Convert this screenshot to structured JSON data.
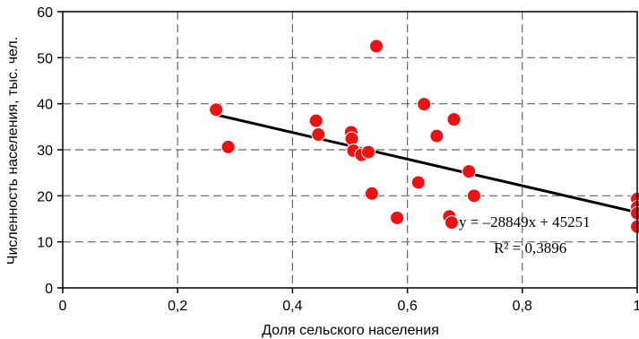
{
  "chart_data": {
    "type": "scatter",
    "xlabel": "Доля сельского населения",
    "ylabel": "Численность населения, тыс. чел.",
    "xlim": [
      0,
      1
    ],
    "ylim": [
      0,
      60
    ],
    "x_ticks": [
      "0",
      "0,2",
      "0,4",
      "0,6",
      "0,8",
      "1"
    ],
    "y_ticks": [
      "0",
      "10",
      "20",
      "30",
      "40",
      "50",
      "60"
    ],
    "grid": true,
    "grid_style": "dashed",
    "point_color": "#ee1111",
    "line_color": "#000000",
    "points": [
      {
        "x": 0.267,
        "y": 38.7
      },
      {
        "x": 0.288,
        "y": 30.6
      },
      {
        "x": 0.441,
        "y": 36.3
      },
      {
        "x": 0.445,
        "y": 33.3
      },
      {
        "x": 0.502,
        "y": 33.8
      },
      {
        "x": 0.503,
        "y": 32.4
      },
      {
        "x": 0.506,
        "y": 29.8
      },
      {
        "x": 0.52,
        "y": 28.9
      },
      {
        "x": 0.532,
        "y": 29.5
      },
      {
        "x": 0.538,
        "y": 20.5
      },
      {
        "x": 0.546,
        "y": 52.5
      },
      {
        "x": 0.582,
        "y": 15.2
      },
      {
        "x": 0.619,
        "y": 22.9
      },
      {
        "x": 0.629,
        "y": 39.9
      },
      {
        "x": 0.651,
        "y": 33.0
      },
      {
        "x": 0.673,
        "y": 15.5
      },
      {
        "x": 0.677,
        "y": 14.2
      },
      {
        "x": 0.681,
        "y": 36.6
      },
      {
        "x": 0.707,
        "y": 25.3
      },
      {
        "x": 0.716,
        "y": 20.0
      },
      {
        "x": 1.0,
        "y": 19.3
      },
      {
        "x": 1.0,
        "y": 17.5
      },
      {
        "x": 1.0,
        "y": 16.2
      },
      {
        "x": 1.0,
        "y": 13.3
      }
    ],
    "trendline": {
      "x_range": [
        0.267,
        1.0
      ],
      "y_values": [
        37.6,
        16.4
      ]
    },
    "equation": "y = –28849x + 45251",
    "r_squared": "R² = 0,3896"
  }
}
